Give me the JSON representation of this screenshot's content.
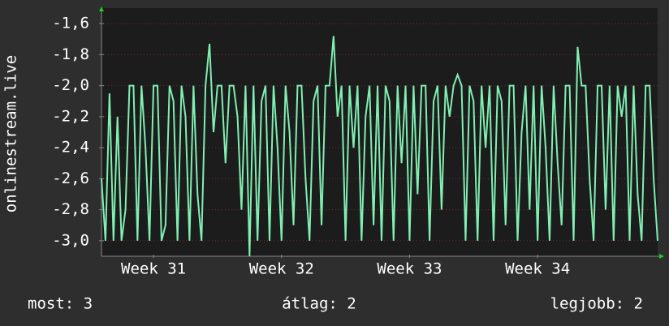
{
  "chart_data": {
    "type": "line",
    "y_label": "onlinestream.live",
    "series": [
      {
        "name": "onlinestream.live",
        "color": "#7fefb2",
        "values": [
          -2.6,
          -3.0,
          -2.05,
          -3.0,
          -2.2,
          -3.0,
          -2.8,
          -2.0,
          -2.0,
          -3.0,
          -2.0,
          -2.4,
          -3.0,
          -2.0,
          -2.0,
          -3.0,
          -2.9,
          -2.0,
          -2.1,
          -3.0,
          -2.0,
          -2.2,
          -3.0,
          -2.0,
          -2.7,
          -3.0,
          -2.0,
          -1.73,
          -2.3,
          -2.0,
          -2.0,
          -2.5,
          -2.0,
          -2.0,
          -2.2,
          -2.8,
          -2.0,
          -3.1,
          -2.0,
          -3.0,
          -2.1,
          -2.0,
          -3.0,
          -2.0,
          -2.4,
          -3.0,
          -2.0,
          -2.3,
          -2.9,
          -2.0,
          -2.0,
          -2.6,
          -3.0,
          -2.1,
          -2.0,
          -2.9,
          -2.0,
          -2.0,
          -1.68,
          -2.2,
          -2.0,
          -3.0,
          -2.0,
          -2.4,
          -2.0,
          -3.0,
          -2.2,
          -2.0,
          -2.9,
          -2.0,
          -3.0,
          -2.0,
          -2.1,
          -3.0,
          -2.0,
          -2.5,
          -2.0,
          -3.0,
          -2.0,
          -2.7,
          -2.0,
          -2.0,
          -3.0,
          -2.1,
          -2.0,
          -2.8,
          -2.0,
          -2.2,
          -2.0,
          -1.93,
          -2.0,
          -3.0,
          -2.0,
          -2.1,
          -3.0,
          -2.0,
          -2.4,
          -2.0,
          -3.0,
          -2.0,
          -2.1,
          -2.9,
          -2.0,
          -2.0,
          -3.0,
          -2.3,
          -2.0,
          -2.8,
          -2.0,
          -3.0,
          -2.0,
          -2.4,
          -3.0,
          -2.0,
          -2.5,
          -2.9,
          -2.0,
          -2.0,
          -3.0,
          -1.75,
          -2.0,
          -2.0,
          -2.6,
          -3.0,
          -2.0,
          -2.0,
          -2.8,
          -2.0,
          -3.0,
          -2.0,
          -2.2,
          -2.0,
          -3.0,
          -2.0,
          -2.7,
          -3.0,
          -2.0,
          -2.0,
          -2.6,
          -3.0
        ]
      }
    ],
    "xlim": [
      0,
      139
    ],
    "xticks": [
      {
        "value": 13,
        "label": "Week 31"
      },
      {
        "value": 45,
        "label": "Week 32"
      },
      {
        "value": 77,
        "label": "Week 33"
      },
      {
        "value": 109,
        "label": "Week 34"
      }
    ],
    "ylim": [
      -3.1,
      -1.5
    ],
    "yticks": [
      {
        "value": -1.6,
        "label": "-1,6"
      },
      {
        "value": -1.8,
        "label": "-1,8"
      },
      {
        "value": -2.0,
        "label": "-2,0"
      },
      {
        "value": -2.2,
        "label": "-2,2"
      },
      {
        "value": -2.4,
        "label": "-2,4"
      },
      {
        "value": -2.6,
        "label": "-2,6"
      },
      {
        "value": -2.8,
        "label": "-2,8"
      },
      {
        "value": -3.0,
        "label": "-3,0"
      }
    ],
    "grid": true,
    "footer": [
      "most: 3",
      "átlag: 2",
      "legjobb: 2"
    ]
  }
}
